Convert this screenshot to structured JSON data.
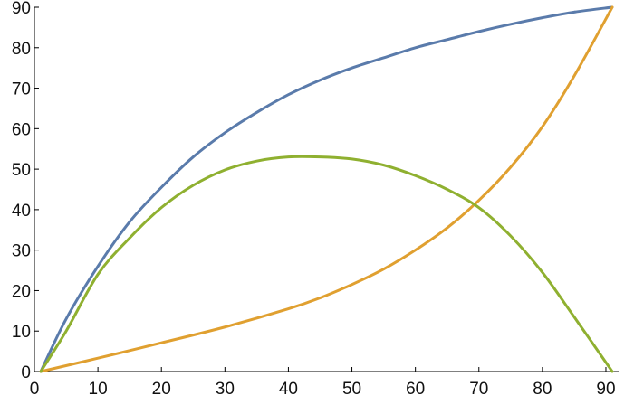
{
  "chart_data": {
    "type": "line",
    "title": "",
    "xlabel": "",
    "ylabel": "",
    "xlim": [
      0,
      92
    ],
    "ylim": [
      0,
      90
    ],
    "x_ticks": [
      0,
      10,
      20,
      30,
      40,
      50,
      60,
      70,
      80,
      90
    ],
    "y_ticks": [
      0,
      10,
      20,
      30,
      40,
      50,
      60,
      70,
      80,
      90
    ],
    "grid": false,
    "legend": "none",
    "series": [
      {
        "color": "#5a7bab",
        "x": [
          1,
          5,
          10,
          15,
          20,
          25,
          30,
          35,
          40,
          45,
          50,
          55,
          60,
          65,
          70,
          75,
          80,
          85,
          91
        ],
        "y": [
          0,
          13,
          26,
          37,
          45.5,
          53,
          59,
          64,
          68.4,
          72,
          75,
          77.5,
          80,
          82,
          84,
          85.8,
          87.4,
          88.8,
          90
        ]
      },
      {
        "color": "#e0a030",
        "x": [
          1,
          10,
          20,
          30,
          40,
          45,
          50,
          55,
          60,
          65,
          70,
          75,
          80,
          85,
          91
        ],
        "y": [
          0,
          3.3,
          7.1,
          11,
          15.5,
          18.2,
          21.5,
          25.3,
          30,
          35.5,
          42.3,
          50.5,
          60.5,
          73,
          90
        ]
      },
      {
        "color": "#8fb030",
        "x": [
          1,
          5,
          10,
          15,
          20,
          25,
          30,
          35,
          40,
          45,
          50,
          55,
          60,
          65,
          70,
          75,
          80,
          85,
          91
        ],
        "y": [
          0,
          10,
          24,
          33,
          40.5,
          46,
          49.8,
          52,
          53,
          53,
          52.5,
          51,
          48.4,
          45,
          40.5,
          33.5,
          24.5,
          13.5,
          0
        ]
      }
    ]
  }
}
